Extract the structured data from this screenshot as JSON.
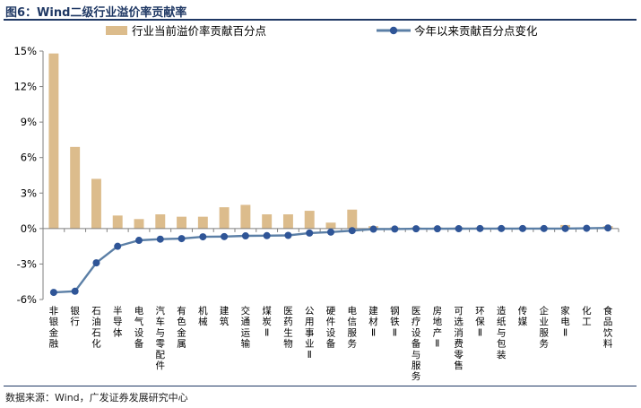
{
  "figure_label": "图6：Wind二级行业溢价率贡献率",
  "source_note": "数据来源：Wind，广发证券发展研究中心",
  "colors": {
    "bar": "#dcbc8c",
    "line": "#5b7fa6",
    "marker": "#2f5597",
    "title": "#1f3864",
    "axis": "#7f7f7f"
  },
  "chart_data": {
    "type": "bar+line",
    "title": "Wind二级行业溢价率贡献率",
    "xlabel": "",
    "ylabel": "",
    "ylim": [
      -6,
      15
    ],
    "yticks": [
      -6,
      -3,
      0,
      3,
      6,
      9,
      12,
      15
    ],
    "ytick_labels": [
      "-6%",
      "-3%",
      "0%",
      "3%",
      "6%",
      "9%",
      "12%",
      "15%"
    ],
    "legend_position": "top",
    "categories": [
      "非银金融",
      "银行",
      "石油石化",
      "半导体",
      "电气设备",
      "汽车与零配件",
      "有色金属",
      "机械",
      "建筑",
      "交通运输",
      "煤炭Ⅱ",
      "医药生物",
      "公用事业Ⅱ",
      "硬件设备",
      "电信服务",
      "建材Ⅱ",
      "钢铁Ⅱ",
      "医疗设备与服务",
      "房地产Ⅱ",
      "可选消费零售",
      "环保Ⅱ",
      "造纸与包装",
      "传媒",
      "企业服务",
      "家电Ⅱ",
      "化工",
      "食品饮料"
    ],
    "series": [
      {
        "name": "行业当前溢价率贡献百分点",
        "type": "bar",
        "values": [
          14.8,
          6.9,
          4.2,
          1.1,
          0.8,
          1.2,
          1.0,
          1.0,
          1.8,
          2.0,
          1.2,
          1.2,
          1.5,
          0.5,
          1.6,
          0.2,
          0.1,
          0.1,
          0.1,
          0.1,
          0.1,
          0.1,
          0.1,
          0.1,
          0.3,
          0.1,
          0.2
        ]
      },
      {
        "name": "今年以来贡献百分点变化",
        "type": "line",
        "values": [
          -5.4,
          -5.3,
          -2.9,
          -1.5,
          -1.0,
          -0.9,
          -0.85,
          -0.7,
          -0.68,
          -0.62,
          -0.6,
          -0.58,
          -0.38,
          -0.3,
          -0.18,
          -0.05,
          -0.04,
          -0.02,
          -0.02,
          -0.01,
          0.0,
          0.0,
          0.0,
          0.0,
          0.0,
          0.02,
          0.05
        ]
      }
    ]
  }
}
